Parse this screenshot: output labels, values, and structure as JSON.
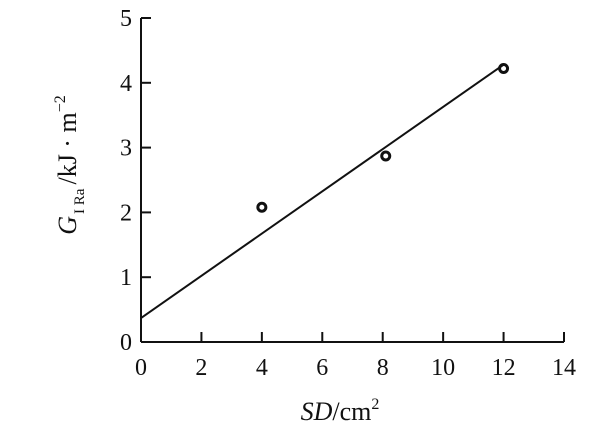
{
  "chart_data": {
    "type": "scatter",
    "xlabel": {
      "var": "SD",
      "unit": "/cm",
      "exp": "2"
    },
    "ylabel": {
      "var": "G",
      "sub": "I Ra",
      "unit": "/kJ · m",
      "exp": "−2"
    },
    "xlim": [
      0,
      14
    ],
    "ylim": [
      0,
      5
    ],
    "xticks": [
      "0",
      "2",
      "4",
      "6",
      "8",
      "10",
      "12",
      "14"
    ],
    "yticks": [
      "0",
      "1",
      "2",
      "3",
      "4",
      "5"
    ],
    "series": [
      {
        "points": [
          {
            "x": 4.0,
            "y": 2.08
          },
          {
            "x": 8.1,
            "y": 2.87
          },
          {
            "x": 12.0,
            "y": 4.22
          }
        ]
      }
    ],
    "fit_line": {
      "x": [
        0,
        12
      ],
      "y": [
        0.37,
        4.28
      ]
    },
    "grid": false,
    "legend": false
  }
}
